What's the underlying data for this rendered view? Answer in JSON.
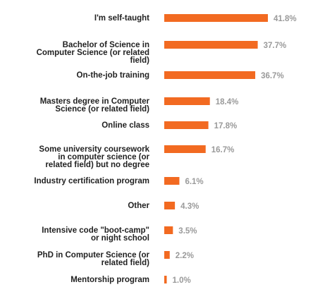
{
  "chart_data": {
    "type": "bar",
    "orientation": "horizontal",
    "categories": [
      [
        "I'm self-taught"
      ],
      [
        "Bachelor of Science in",
        "Computer Science (or related",
        "field)"
      ],
      [
        "On-the-job training"
      ],
      [
        "Masters degree in Computer",
        "Science (or related field)"
      ],
      [
        "Online class"
      ],
      [
        "Some university coursework",
        "in computer science (or",
        "related field) but no degree"
      ],
      [
        "Industry certification program"
      ],
      [
        "Other"
      ],
      [
        "Intensive code \"boot-camp\"",
        "or night school"
      ],
      [
        "PhD in Computer Science (or",
        "related field)"
      ],
      [
        "Mentorship program"
      ]
    ],
    "values": [
      41.8,
      37.7,
      36.7,
      18.4,
      17.8,
      16.7,
      6.1,
      4.3,
      3.5,
      2.2,
      1.0
    ],
    "value_labels": [
      "41.8%",
      "37.7%",
      "36.7%",
      "18.4%",
      "17.8%",
      "16.7%",
      "6.1%",
      "4.3%",
      "3.5%",
      "2.2%",
      "1.0%"
    ],
    "xlim": [
      0,
      41.8
    ],
    "bar_color": "#f26a21",
    "label_color": "#222222",
    "value_label_color": "#9a9a9a",
    "grid": false,
    "legend": false
  }
}
